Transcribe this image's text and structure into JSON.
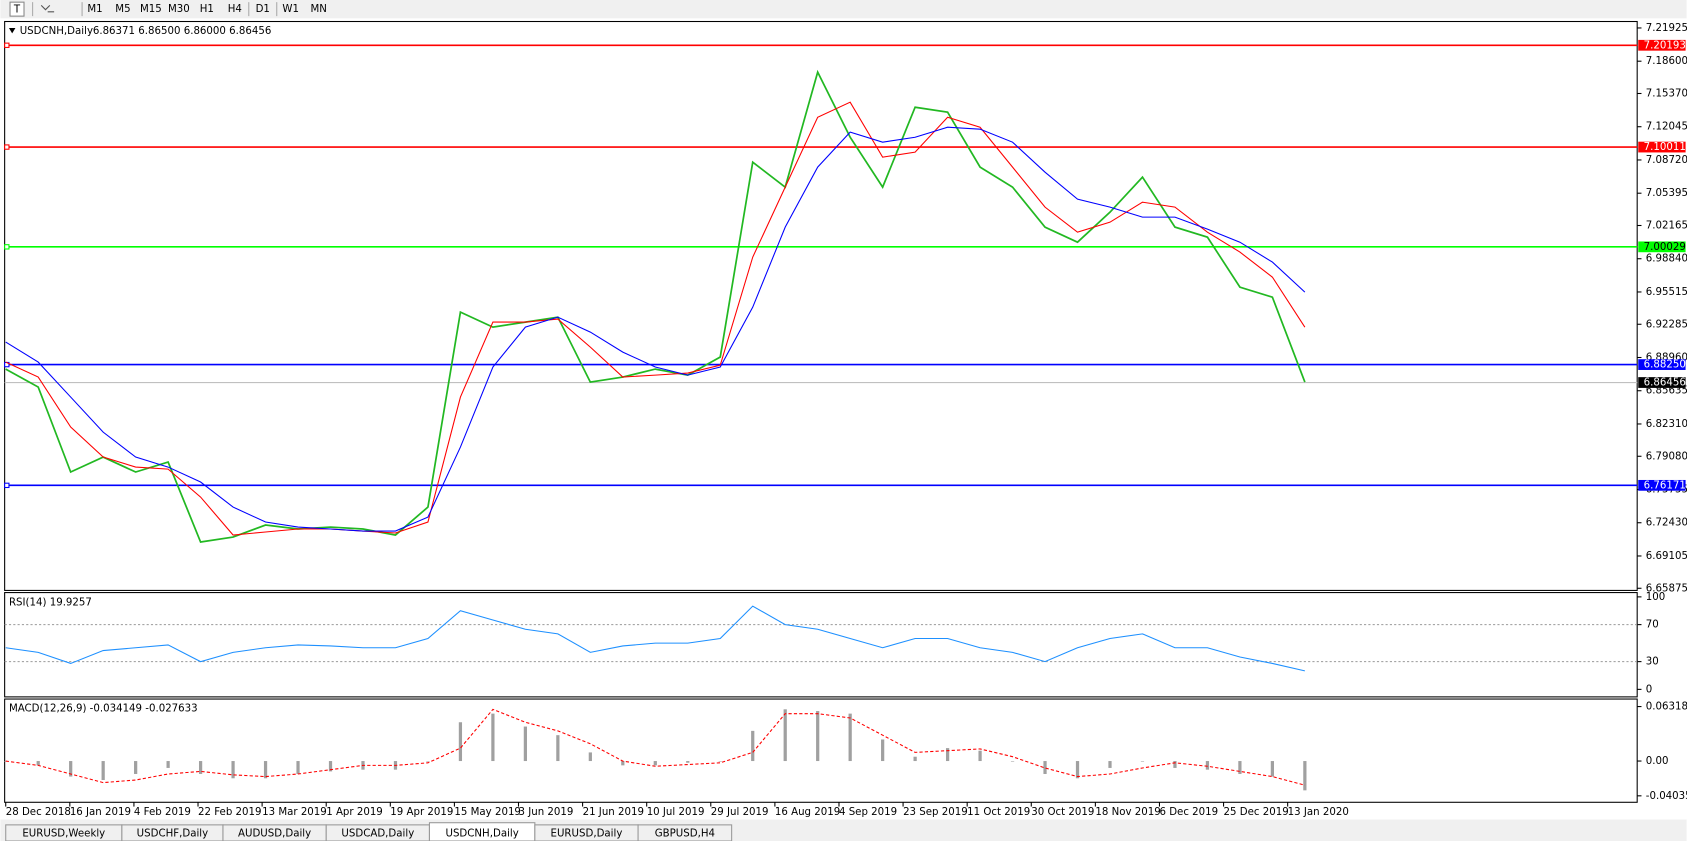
{
  "toolbar": {
    "timeframes": [
      "M1",
      "M5",
      "M15",
      "M30",
      "H1",
      "H4",
      "D1",
      "W1",
      "MN"
    ]
  },
  "chart_data": [
    {
      "type": "line",
      "title": "USDCNH,Daily",
      "subtitle": "6.86371 6.86500 6.86000 6.86456",
      "ylim": [
        6.65875,
        7.21925
      ],
      "yticks": [
        7.21925,
        {
          "value": 7.186,
          "label": "7.18600"
        },
        {
          "value": 7.1537,
          "label": "7.15370"
        },
        7.12045,
        {
          "value": 7.0872,
          "label": "7.08720"
        },
        7.05395,
        7.02165,
        {
          "value": 6.9884,
          "label": "6.98840"
        },
        6.95515,
        6.92285,
        {
          "value": 6.8896,
          "label": "6.88960"
        },
        6.85635,
        {
          "value": 6.8231,
          "label": "6.82310"
        },
        {
          "value": 6.7908,
          "label": "6.79080"
        },
        6.75755,
        {
          "value": 6.7243,
          "label": "6.72430"
        },
        6.69105,
        6.65875
      ],
      "series": [
        {
          "color": "#22b822",
          "values": [
            6.878,
            6.86,
            6.775,
            6.79,
            6.775,
            6.785,
            6.705,
            6.71,
            6.722,
            6.718,
            6.72,
            6.718,
            6.712,
            6.74,
            6.935,
            6.92,
            6.925,
            6.93,
            6.865,
            6.87,
            6.878,
            6.872,
            6.89,
            7.085,
            7.06,
            7.175,
            7.11,
            7.06,
            7.14,
            7.135,
            7.08,
            7.06,
            7.02,
            7.005,
            7.035,
            7.07,
            7.02,
            7.01,
            6.96,
            6.95,
            6.865
          ]
        },
        {
          "color": "#ff0000",
          "values": [
            6.885,
            6.87,
            6.82,
            6.79,
            6.78,
            6.778,
            6.75,
            6.712,
            6.715,
            6.718,
            6.718,
            6.716,
            6.714,
            6.725,
            6.85,
            6.925,
            6.925,
            6.928,
            6.9,
            6.87,
            6.872,
            6.874,
            6.882,
            6.99,
            7.06,
            7.13,
            7.145,
            7.09,
            7.095,
            7.13,
            7.12,
            7.08,
            7.04,
            7.015,
            7.025,
            7.045,
            7.04,
            7.015,
            6.995,
            6.97,
            6.92
          ]
        },
        {
          "color": "#0000ff",
          "values": [
            6.905,
            6.885,
            6.85,
            6.815,
            6.79,
            6.78,
            6.765,
            6.74,
            6.725,
            6.72,
            6.718,
            6.716,
            6.716,
            6.73,
            6.8,
            6.88,
            6.92,
            6.93,
            6.915,
            6.895,
            6.88,
            6.872,
            6.88,
            6.94,
            7.02,
            7.08,
            7.115,
            7.105,
            7.11,
            7.12,
            7.118,
            7.105,
            7.075,
            7.048,
            7.04,
            7.03,
            7.03,
            7.018,
            7.005,
            6.985,
            6.955
          ]
        }
      ],
      "levels": [
        {
          "value": 7.20193,
          "color": "#ff0000"
        },
        {
          "value": 7.10011,
          "color": "#ff0000"
        },
        {
          "value": 7.00029,
          "color": "#00ff00"
        },
        {
          "value": 6.8825,
          "label": "6.88250",
          "color": "#0000ff"
        },
        {
          "value": 6.76171,
          "color": "#0000ff"
        }
      ],
      "current_price": 6.86456
    },
    {
      "type": "line",
      "title": "RSI(14) 19.9257",
      "ylim": [
        0,
        100
      ],
      "yticks": [
        100,
        70,
        30,
        0
      ],
      "grid": true,
      "series": [
        {
          "color": "#1e90ff",
          "values": [
            45,
            40,
            28,
            42,
            45,
            48,
            30,
            40,
            45,
            48,
            47,
            45,
            45,
            55,
            85,
            75,
            65,
            60,
            40,
            47,
            50,
            50,
            55,
            90,
            70,
            65,
            55,
            45,
            55,
            55,
            45,
            40,
            30,
            45,
            55,
            60,
            45,
            45,
            35,
            28,
            20
          ]
        }
      ]
    },
    {
      "type": "bar",
      "title": "MACD(12,26,9) -0.034149 -0.027633",
      "ylim": [
        -0.040355,
        0.063184
      ],
      "yticks": [
        0.063184,
        {
          "value": 0,
          "label": "0.00"
        },
        -0.040355
      ],
      "series": [
        {
          "color": "#a0a0a0",
          "values": [
            0,
            -0.005,
            -0.018,
            -0.022,
            -0.015,
            -0.008,
            -0.015,
            -0.02,
            -0.02,
            -0.015,
            -0.012,
            -0.01,
            -0.01,
            0,
            0.045,
            0.055,
            0.04,
            0.03,
            0.01,
            -0.005,
            -0.005,
            -0.002,
            0,
            0.035,
            0.06,
            0.058,
            0.055,
            0.025,
            0.005,
            0.015,
            0.012,
            0,
            -0.015,
            -0.02,
            -0.008,
            0,
            -0.008,
            -0.01,
            -0.015,
            -0.018,
            -0.034
          ]
        },
        {
          "type": "line",
          "color": "#ff0000",
          "values": [
            0,
            -0.005,
            -0.015,
            -0.025,
            -0.022,
            -0.015,
            -0.012,
            -0.016,
            -0.018,
            -0.015,
            -0.01,
            -0.005,
            -0.005,
            -0.002,
            0.015,
            0.06,
            0.045,
            0.035,
            0.02,
            0,
            -0.006,
            -0.004,
            -0.002,
            0.01,
            0.055,
            0.055,
            0.05,
            0.03,
            0.01,
            0.012,
            0.014,
            0.005,
            -0.008,
            -0.018,
            -0.015,
            -0.008,
            -0.002,
            -0.006,
            -0.012,
            -0.018,
            -0.028
          ]
        }
      ]
    }
  ],
  "date_axis": [
    "28 Dec 2018",
    "16 Jan 2019",
    "4 Feb 2019",
    "22 Feb 2019",
    "13 Mar 2019",
    "1 Apr 2019",
    "19 Apr 2019",
    "15 May 2019",
    "3 Jun 2019",
    "21 Jun 2019",
    "10 Jul 2019",
    "29 Jul 2019",
    "16 Aug 2019",
    "4 Sep 2019",
    "23 Sep 2019",
    "11 Oct 2019",
    "30 Oct 2019",
    "18 Nov 2019",
    "6 Dec 2019",
    "25 Dec 2019",
    "13 Jan 2020"
  ],
  "tabs": [
    "EURUSD,Weekly",
    "USDCHF,Daily",
    "AUDUSD,Daily",
    "USDCAD,Daily",
    "USDCNH,Daily",
    "EURUSD,Daily",
    "GBPUSD,H4"
  ]
}
